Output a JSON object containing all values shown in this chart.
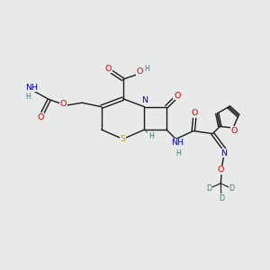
{
  "bg_color": "#e8eaea",
  "bond_color": "#1a1a1a",
  "atom_colors": {
    "O": "#dd0000",
    "N": "#0000cc",
    "S": "#b8960a",
    "H": "#3a7a7a",
    "D": "#3a7a7a",
    "C": "#1a1a1a"
  },
  "lw": 1.0,
  "fs": 6.8,
  "xlim": [
    0,
    10
  ],
  "ylim": [
    0,
    10
  ]
}
